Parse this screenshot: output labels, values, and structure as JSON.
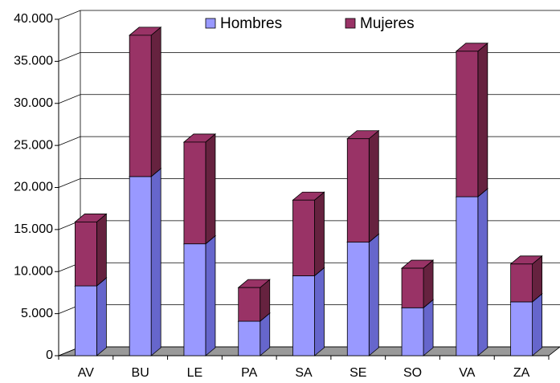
{
  "chart_data": {
    "type": "bar3d-stacked",
    "categories": [
      "AV",
      "BU",
      "LE",
      "PA",
      "SA",
      "SE",
      "SO",
      "VA",
      "ZA"
    ],
    "series": [
      {
        "name": "Hombres",
        "color": "#9999ff",
        "values": [
          8300,
          21300,
          13300,
          4100,
          9500,
          13500,
          5700,
          18900,
          6400
        ]
      },
      {
        "name": "Mujeres",
        "color": "#993366",
        "values": [
          7600,
          16800,
          12100,
          4000,
          9000,
          12300,
          4700,
          17300,
          4500
        ]
      }
    ],
    "ylim": [
      0,
      40000
    ],
    "yticks": [
      0,
      {
        "value": 5000,
        "label": "5.000"
      },
      {
        "value": 10000,
        "label": "10.000"
      },
      {
        "value": 15000,
        "label": "15.000"
      },
      {
        "value": 20000,
        "label": "20.000"
      },
      {
        "value": 25000,
        "label": "25.000"
      },
      {
        "value": 30000,
        "label": "30.000"
      },
      {
        "value": 35000,
        "label": "35.000"
      },
      {
        "value": 40000,
        "label": "40.000"
      }
    ],
    "grid": true,
    "legend": "top"
  }
}
